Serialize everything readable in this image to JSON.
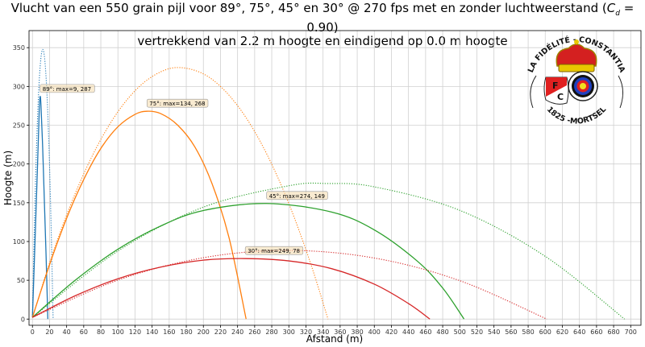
{
  "chart_data": {
    "type": "line",
    "title_line1": "Vlucht van een 550 grain pijl voor 89°, 75°, 45° en 30° @ 270 fps met en zonder luchtweerstand (",
    "title_cd": "C",
    "title_cd_sub": "d",
    "title_cd_rest": " = 0.90)",
    "title_line2": "vertrekkend van 2.2 m hoogte en eindigend op 0.0 m hoogte",
    "xlabel": "Afstand (m)",
    "ylabel": "Hoogte (m)",
    "xlim": [
      -4,
      712
    ],
    "ylim": [
      -8,
      372
    ],
    "xticks": [
      0,
      20,
      40,
      60,
      80,
      100,
      120,
      140,
      160,
      180,
      200,
      220,
      240,
      260,
      280,
      300,
      320,
      340,
      360,
      380,
      400,
      420,
      440,
      460,
      480,
      500,
      520,
      540,
      560,
      580,
      600,
      620,
      640,
      660,
      680,
      700
    ],
    "yticks": [
      0,
      50,
      100,
      150,
      200,
      250,
      300,
      350
    ],
    "grid": true,
    "series": [
      {
        "angle": "89°",
        "color": "#1f77b4",
        "style": "solid",
        "points": [
          [
            0,
            2.2
          ],
          [
            3,
            100
          ],
          [
            6,
            200
          ],
          [
            8,
            270
          ],
          [
            9,
            287
          ],
          [
            10,
            275
          ],
          [
            12,
            220
          ],
          [
            14,
            150
          ],
          [
            16,
            80
          ],
          [
            18,
            0
          ]
        ],
        "annotation": "89°: max=9, 287"
      },
      {
        "angle": "89°",
        "color": "#1f77b4",
        "style": "dotted",
        "points": [
          [
            0,
            2.2
          ],
          [
            3,
            152.7
          ],
          [
            6,
            260.4
          ],
          [
            9,
            325.4
          ],
          [
            12,
            347.7
          ],
          [
            15,
            327.2
          ],
          [
            18,
            263.9
          ],
          [
            21,
            158
          ],
          [
            24.2,
            0
          ]
        ]
      },
      {
        "angle": "75°",
        "color": "#ff7f0e",
        "style": "solid",
        "points": [
          [
            0,
            2.2
          ],
          [
            20,
            70
          ],
          [
            40,
            130
          ],
          [
            60,
            180
          ],
          [
            80,
            220
          ],
          [
            100,
            248
          ],
          [
            120,
            264
          ],
          [
            134,
            268
          ],
          [
            150,
            265
          ],
          [
            170,
            250
          ],
          [
            190,
            222
          ],
          [
            210,
            175
          ],
          [
            230,
            105
          ],
          [
            250,
            0
          ]
        ],
        "annotation": "75°: max=134, 268"
      },
      {
        "angle": "75°",
        "color": "#ff7f0e",
        "style": "dotted",
        "points": [
          [
            0,
            2.2
          ],
          [
            25,
            88.7
          ],
          [
            50,
            161.8
          ],
          [
            75,
            221.3
          ],
          [
            100,
            267.3
          ],
          [
            125,
            299.8
          ],
          [
            150,
            318.8
          ],
          [
            172.6,
            324.3
          ],
          [
            200,
            316.2
          ],
          [
            225,
            294.6
          ],
          [
            250,
            259.6
          ],
          [
            275,
            211
          ],
          [
            300,
            148.9
          ],
          [
            325,
            73.3
          ],
          [
            345.8,
            0
          ]
        ]
      },
      {
        "angle": "45°",
        "color": "#2ca02c",
        "style": "solid",
        "points": [
          [
            0,
            2.2
          ],
          [
            50,
            50
          ],
          [
            100,
            90
          ],
          [
            150,
            120
          ],
          [
            200,
            140
          ],
          [
            274,
            149
          ],
          [
            350,
            138
          ],
          [
            400,
            115
          ],
          [
            450,
            75
          ],
          [
            480,
            40
          ],
          [
            505,
            0
          ]
        ],
        "annotation": "45°: max=274, 149"
      },
      {
        "angle": "45°",
        "color": "#2ca02c",
        "style": "dotted",
        "points": [
          [
            0,
            2.2
          ],
          [
            100,
            87.7
          ],
          [
            200,
            144.3
          ],
          [
            300,
            171.9
          ],
          [
            345,
            174.8
          ],
          [
            400,
            170.5
          ],
          [
            500,
            140.2
          ],
          [
            600,
            80.9
          ],
          [
            692.8,
            0
          ]
        ]
      },
      {
        "angle": "30°",
        "color": "#d62728",
        "style": "solid",
        "points": [
          [
            0,
            2.2
          ],
          [
            50,
            30
          ],
          [
            100,
            52
          ],
          [
            150,
            67
          ],
          [
            200,
            76
          ],
          [
            249,
            78
          ],
          [
            300,
            75
          ],
          [
            350,
            65
          ],
          [
            400,
            45
          ],
          [
            440,
            20
          ],
          [
            465,
            0
          ]
        ],
        "annotation": "30°: max=249, 78"
      },
      {
        "angle": "30°",
        "color": "#d62728",
        "style": "dotted",
        "points": [
          [
            0,
            2.2
          ],
          [
            100,
            50.2
          ],
          [
            200,
            79.1
          ],
          [
            299,
            88.5
          ],
          [
            400,
            78.7
          ],
          [
            500,
            49.5
          ],
          [
            601.8,
            0
          ]
        ]
      }
    ]
  },
  "logo": {
    "text_top": "LA FIDÉLITÉ - CONSTANTIA",
    "text_bottom": "1825 -MORTSEL",
    "letters": "F C"
  }
}
